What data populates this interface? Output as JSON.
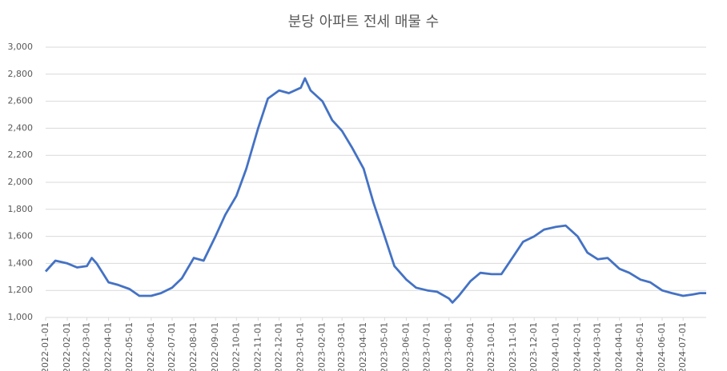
{
  "chart_data": {
    "type": "line",
    "title": "분당 아파트 전세 매물 수",
    "x": [
      "2022-01-01",
      "2022-01-15",
      "2022-02-01",
      "2022-02-15",
      "2022-03-01",
      "2022-03-08",
      "2022-03-15",
      "2022-04-01",
      "2022-04-15",
      "2022-05-01",
      "2022-05-15",
      "2022-06-01",
      "2022-06-15",
      "2022-07-01",
      "2022-07-15",
      "2022-08-01",
      "2022-08-15",
      "2022-09-01",
      "2022-09-15",
      "2022-10-01",
      "2022-10-15",
      "2022-11-01",
      "2022-11-15",
      "2022-12-01",
      "2022-12-15",
      "2023-01-01",
      "2023-01-07",
      "2023-01-15",
      "2023-02-01",
      "2023-02-15",
      "2023-03-01",
      "2023-03-15",
      "2023-04-01",
      "2023-04-15",
      "2023-05-01",
      "2023-05-15",
      "2023-06-01",
      "2023-06-15",
      "2023-07-01",
      "2023-07-15",
      "2023-08-01",
      "2023-08-06",
      "2023-08-15",
      "2023-09-01",
      "2023-09-15",
      "2023-10-01",
      "2023-10-15",
      "2023-11-01",
      "2023-11-15",
      "2023-12-01",
      "2023-12-15",
      "2024-01-01",
      "2024-01-15",
      "2024-02-01",
      "2024-02-15",
      "2024-03-01",
      "2024-03-15",
      "2024-04-01",
      "2024-04-15",
      "2024-05-01",
      "2024-05-15",
      "2024-06-01",
      "2024-06-15",
      "2024-07-01",
      "2024-07-15",
      "2024-07-25",
      "2024-08-03"
    ],
    "series": [
      {
        "name": "매물 수",
        "color": "#4472c4",
        "values": [
          1340,
          1420,
          1400,
          1370,
          1380,
          1440,
          1400,
          1260,
          1240,
          1210,
          1160,
          1160,
          1180,
          1220,
          1290,
          1440,
          1420,
          1600,
          1760,
          1900,
          2100,
          2400,
          2620,
          2680,
          2660,
          2700,
          2770,
          2680,
          2600,
          2460,
          2380,
          2260,
          2100,
          1850,
          1600,
          1380,
          1280,
          1220,
          1200,
          1190,
          1140,
          1110,
          1160,
          1270,
          1330,
          1320,
          1320,
          1450,
          1560,
          1600,
          1650,
          1670,
          1680,
          1600,
          1480,
          1430,
          1440,
          1360,
          1330,
          1280,
          1260,
          1200,
          1180,
          1160,
          1170,
          1180,
          1180
        ]
      }
    ],
    "xlim": [
      "2022-01-01",
      "2024-08-03"
    ],
    "xticks": [
      "2022-01-01",
      "2022-02-01",
      "2022-03-01",
      "2022-04-01",
      "2022-05-01",
      "2022-06-01",
      "2022-07-01",
      "2022-08-01",
      "2022-09-01",
      "2022-10-01",
      "2022-11-01",
      "2022-12-01",
      "2023-01-01",
      "2023-02-01",
      "2023-03-01",
      "2023-04-01",
      "2023-05-01",
      "2023-06-01",
      "2023-07-01",
      "2023-08-01",
      "2023-09-01",
      "2023-10-01",
      "2023-11-01",
      "2023-12-01",
      "2024-01-01",
      "2024-02-01",
      "2024-03-01",
      "2024-04-01",
      "2024-05-01",
      "2024-06-01",
      "2024-07-01"
    ],
    "ylim": [
      1000,
      3000
    ],
    "yticks": [
      {
        "value": 1000,
        "label": "1,000"
      },
      {
        "value": 1200,
        "label": "1,200"
      },
      {
        "value": 1400,
        "label": "1,400"
      },
      {
        "value": 1600,
        "label": "1,600"
      },
      {
        "value": 1800,
        "label": "1,800"
      },
      {
        "value": 2000,
        "label": "2,000"
      },
      {
        "value": 2200,
        "label": "2,200"
      },
      {
        "value": 2400,
        "label": "2,400"
      },
      {
        "value": 2600,
        "label": "2,600"
      },
      {
        "value": 2800,
        "label": "2,800"
      },
      {
        "value": 3000,
        "label": "3,000"
      }
    ],
    "grid": true
  }
}
